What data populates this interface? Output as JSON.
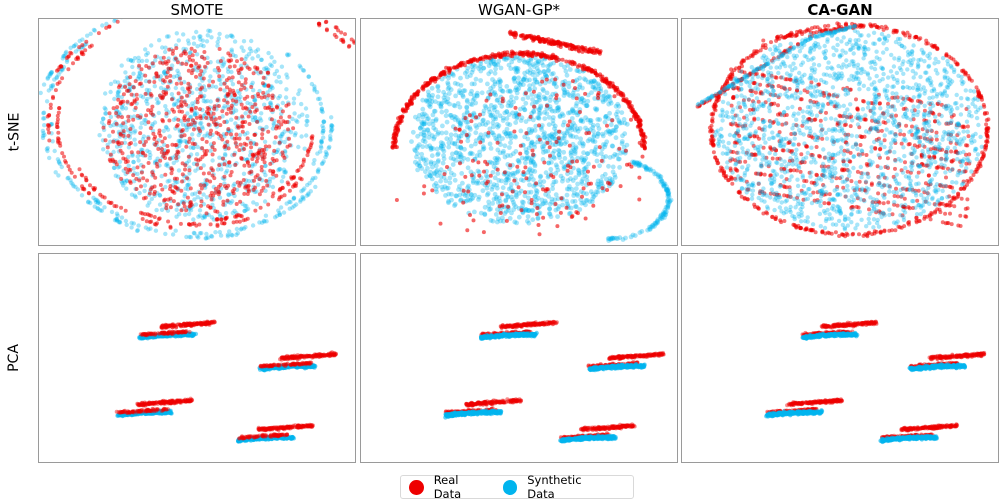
{
  "chart_data": {
    "type": "scatter",
    "columns": [
      "SMOTE",
      "WGAN-GP*",
      "CA-GAN"
    ],
    "rows": [
      "t-SNE",
      "PCA"
    ],
    "grid": false,
    "legend_placement": "bottom-center",
    "series": [
      {
        "name": "Real Data",
        "color": "#ee0000"
      },
      {
        "name": "Synthetic Data",
        "color": "#00b4ee"
      }
    ],
    "pca_clusters": {
      "SMOTE": [
        [
          0.32,
          0.37
        ],
        [
          0.7,
          0.52
        ],
        [
          0.25,
          0.74
        ],
        [
          0.63,
          0.86
        ]
      ],
      "WGAN-GP*": [
        [
          0.38,
          0.37
        ],
        [
          0.72,
          0.52
        ],
        [
          0.27,
          0.74
        ],
        [
          0.63,
          0.86
        ]
      ],
      "CA-GAN": [
        [
          0.38,
          0.37
        ],
        [
          0.72,
          0.52
        ],
        [
          0.27,
          0.74
        ],
        [
          0.63,
          0.86
        ]
      ]
    }
  }
}
